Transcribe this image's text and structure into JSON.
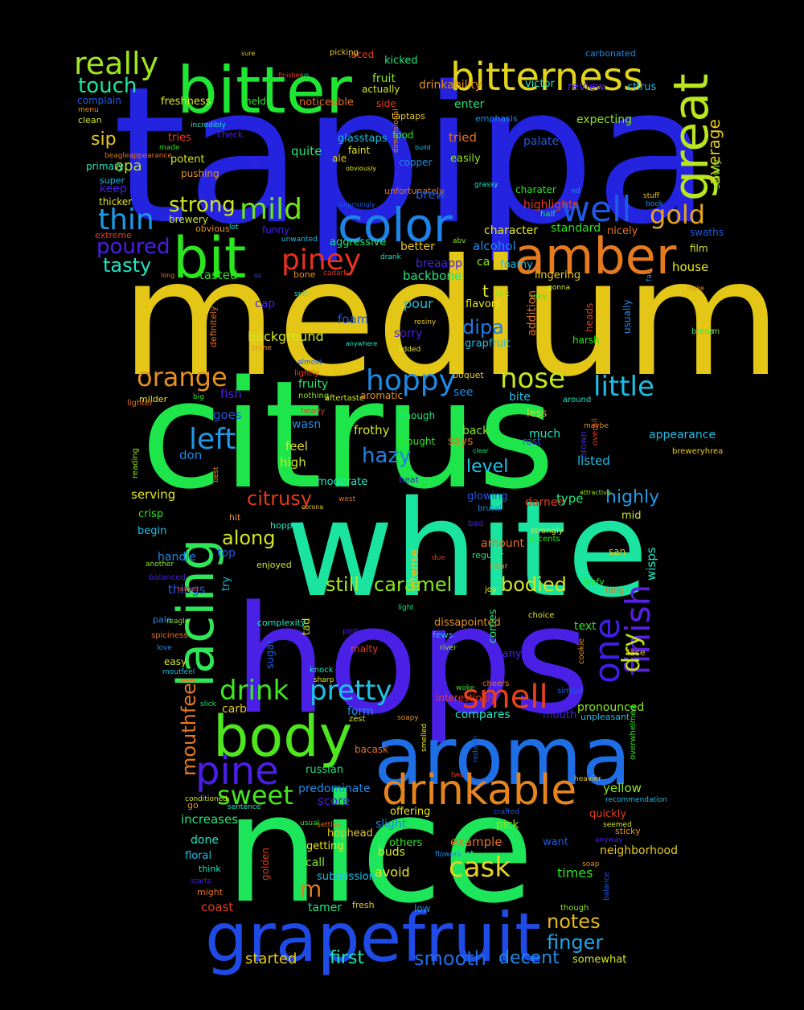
{
  "words": [
    {
      "text": "tapipa",
      "color": "#2323e0"
    },
    {
      "text": "medium",
      "color": "#e3c616"
    },
    {
      "text": "citrus",
      "color": "#1ee64a"
    },
    {
      "text": "white",
      "color": "#1be3a0"
    },
    {
      "text": "hops",
      "color": "#4a20e6"
    },
    {
      "text": "nice",
      "color": "#1ee65a"
    },
    {
      "text": "aroma",
      "color": "#1e6ee6"
    },
    {
      "text": "grapefruit",
      "color": "#1e4ae6"
    },
    {
      "text": "bitter",
      "color": "#1ee633"
    },
    {
      "text": "bitterness",
      "color": "#e3d41a"
    },
    {
      "text": "color",
      "color": "#1e82e6"
    },
    {
      "text": "amber",
      "color": "#e67a1e"
    },
    {
      "text": "bit",
      "color": "#2ae61e"
    },
    {
      "text": "great",
      "color": "#b9e61e"
    },
    {
      "text": "body",
      "color": "#4ee61e"
    },
    {
      "text": "lacing",
      "color": "#2ee658"
    },
    {
      "text": "drinkable",
      "color": "#e6851e"
    },
    {
      "text": "pine",
      "color": "#4a1ee6"
    },
    {
      "text": "really",
      "color": "#a0e61e"
    },
    {
      "text": "well",
      "color": "#1e5ae6"
    },
    {
      "text": "mild",
      "color": "#6ee61e"
    },
    {
      "text": "piney",
      "color": "#e6321e"
    },
    {
      "text": "finish",
      "color": "#5a1ee6"
    },
    {
      "text": "one",
      "color": "#3c1ee6"
    },
    {
      "text": "smell",
      "color": "#e6421e"
    },
    {
      "text": "hoppy",
      "color": "#1e8be6"
    },
    {
      "text": "nose",
      "color": "#c8e61e"
    },
    {
      "text": "little",
      "color": "#1ebde6"
    },
    {
      "text": "orange",
      "color": "#e6901e"
    },
    {
      "text": "left",
      "color": "#1e99e6"
    },
    {
      "text": "pretty",
      "color": "#1ec2e6"
    },
    {
      "text": "drink",
      "color": "#3ee61e"
    },
    {
      "text": "sweet",
      "color": "#46e61e"
    },
    {
      "text": "cask",
      "color": "#e6d21e"
    },
    {
      "text": "gold",
      "color": "#e6a51e"
    },
    {
      "text": "thin",
      "color": "#1e9be6"
    },
    {
      "text": "poured",
      "color": "#4a1ee6"
    },
    {
      "text": "tasty",
      "color": "#1ee6c4"
    },
    {
      "text": "touch",
      "color": "#1ee6a0"
    },
    {
      "text": "strong",
      "color": "#d2e61e"
    },
    {
      "text": "finger",
      "color": "#1ea5e6"
    },
    {
      "text": "notes",
      "color": "#e6b71e"
    },
    {
      "text": "smooth",
      "color": "#1e6ee6"
    },
    {
      "text": "decent",
      "color": "#1e8be6"
    },
    {
      "text": "first",
      "color": "#1ee6b0"
    },
    {
      "text": "started",
      "color": "#e6c81e"
    },
    {
      "text": "mouthfeel",
      "color": "#e6781e"
    },
    {
      "text": "still",
      "color": "#b0e61e"
    },
    {
      "text": "caramel",
      "color": "#8be61e"
    },
    {
      "text": "bodied",
      "color": "#d2e61e"
    },
    {
      "text": "citrusy",
      "color": "#e63a1e"
    },
    {
      "text": "along",
      "color": "#d2e61e"
    },
    {
      "text": "dipa",
      "color": "#1e78e6"
    },
    {
      "text": "hazy",
      "color": "#1e82e6"
    },
    {
      "text": "level",
      "color": "#1ec2e6"
    },
    {
      "text": "highly",
      "color": "#1e9be6"
    },
    {
      "text": "dry",
      "color": "#c0e61e"
    },
    {
      "text": "sip",
      "color": "#e6c81e"
    },
    {
      "text": "average",
      "color": "#e6c81e"
    },
    {
      "text": "apa",
      "color": "#b9e61e"
    },
    {
      "text": "m",
      "color": "#e6781e"
    },
    {
      "text": "t",
      "color": "#e6e61e"
    },
    {
      "text": "s",
      "color": "#3c1ee6"
    }
  ],
  "small_words": [
    "laced",
    "kicked",
    "picking",
    "carbonated",
    "fruit",
    "actually",
    "drinkability",
    "victor",
    "review",
    "ctirus",
    "freshness",
    "held",
    "noticeable",
    "complain",
    "side",
    "enter",
    "taptaps",
    "emphasis",
    "expecting",
    "clean",
    "menu",
    "incredibly",
    "check",
    "glasstaps",
    "faint",
    "food",
    "tried",
    "palate",
    "tries",
    "quite",
    "ale",
    "copper",
    "easily",
    "potent",
    "pushing",
    "primary",
    "keep",
    "super",
    "thicker",
    "charater",
    "unfortunately",
    "brew",
    "highlights",
    "half",
    "stuff",
    "book",
    "slowly",
    "brewery",
    "obvious",
    "lot",
    "funny",
    "unwanted",
    "character",
    "standard",
    "nicely",
    "swaths",
    "extreme",
    "aggressive",
    "better",
    "alcohol",
    "abv",
    "film",
    "bone",
    "drank",
    "breaapp",
    "foamy",
    "house",
    "tasted",
    "long",
    "oz",
    "cadark",
    "backbone",
    "lingering",
    "fair",
    "hint",
    "gonna",
    "make",
    "spit",
    "cap",
    "pour",
    "flavors",
    "spicy",
    "definitely",
    "foam",
    "heads",
    "breaa",
    "resiny",
    "usually",
    "seem",
    "background",
    "stone",
    "anywhere",
    "sorry",
    "grapfruit",
    "added",
    "harsh",
    "addition",
    "almost",
    "lightly",
    "fruity",
    "boquet",
    "see",
    "nothing",
    "aftertaste",
    "aromatic",
    "around",
    "fish",
    "bite",
    "milder",
    "big",
    "lighter",
    "goes",
    "heavy",
    "enough",
    "less",
    "wasn",
    "back",
    "frothy",
    "maybe",
    "much",
    "brown",
    "appearance",
    "feel",
    "thought",
    "says",
    "rest",
    "overall",
    "clear",
    "breweryhrea",
    "don",
    "reading",
    "high",
    "best",
    "moderate",
    "beat",
    "listed",
    "serving",
    "crisp",
    "west",
    "glowing",
    "darned",
    "type",
    "corona",
    "brutal",
    "attractive",
    "mid",
    "hit",
    "hopped",
    "bad",
    "begin",
    "strongly",
    "accents",
    "amount",
    "top",
    "due",
    "regular",
    "san",
    "handle",
    "another",
    "enjoyed",
    "near",
    "wisps",
    "balanced",
    "try",
    "joy",
    "leafy",
    "tang",
    "things",
    "muted",
    "light",
    "intense",
    "pale",
    "reagle",
    "tad",
    "dissapointed",
    "complexity",
    "pint",
    "fews",
    "choice",
    "text",
    "spiciness",
    "sugar",
    "malty",
    "comes",
    "lace",
    "love",
    "river",
    "easy",
    "cookie",
    "knock",
    "many",
    "moutfeel",
    "sharp",
    "woke",
    "cheers",
    "similar",
    "interestingly",
    "slick",
    "carb",
    "form",
    "pronounced",
    "zest",
    "soapy",
    "compares",
    "mouth",
    "unpleasant",
    "smelled",
    "overwhelmed",
    "bacask",
    "reddish",
    "two",
    "russian",
    "heavier",
    "predominate",
    "yellow",
    "conditioned",
    "go",
    "sentence",
    "score",
    "recommendation",
    "offering",
    "usual",
    "settles",
    "crafted",
    "quickly",
    "increases",
    "hophead",
    "slight",
    "pick",
    "seemed",
    "sticky",
    "done",
    "anyway",
    "floral",
    "getting",
    "others",
    "example",
    "want",
    "golden",
    "least",
    "neighborhood",
    "flowers",
    "call",
    "buds",
    "soap",
    "think",
    "starts",
    "submission",
    "avoid",
    "times",
    "might",
    "balance",
    "coast",
    "tamer",
    "fresh",
    "low",
    "though",
    "somewhat",
    "dimensional",
    "grassy",
    "diego",
    "build",
    "obviously",
    "made",
    "beagleappearance",
    "surprisingly",
    "finishes",
    "us",
    "sure",
    "nd",
    "ca",
    "ve",
    "ctirus"
  ]
}
